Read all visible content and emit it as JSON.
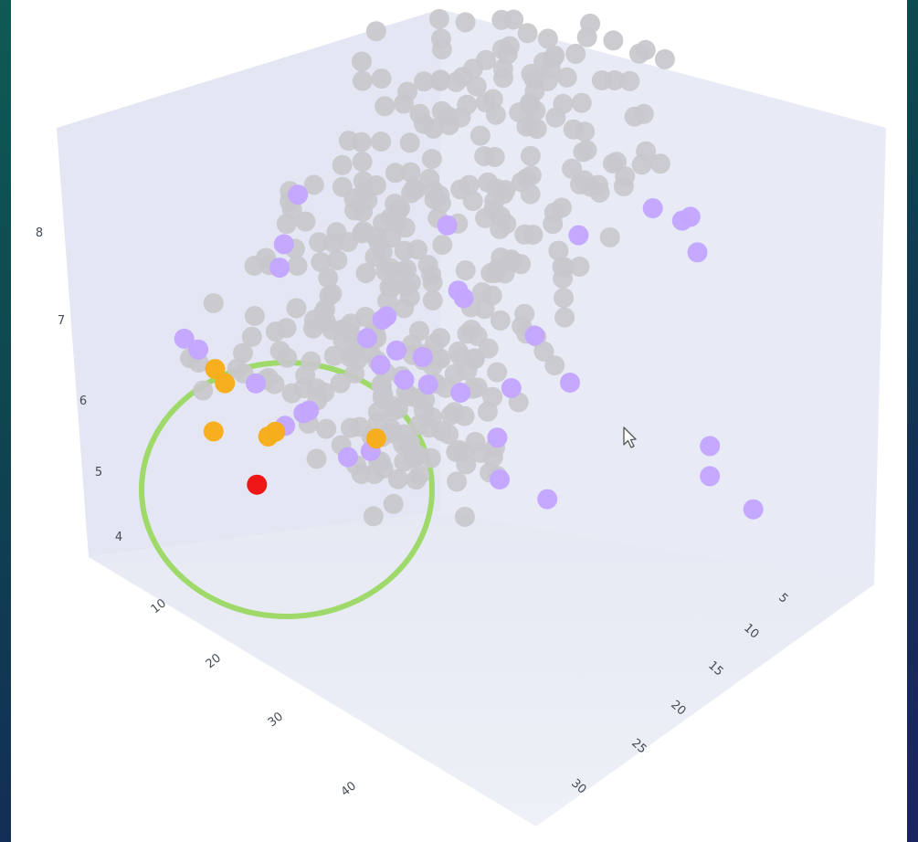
{
  "chart_data": {
    "type": "scatter",
    "dimensions": "3d",
    "axes": {
      "x": {
        "ticks": [
          "10",
          "20",
          "30",
          "40"
        ]
      },
      "y": {
        "ticks": [
          "5",
          "10",
          "15",
          "20",
          "25",
          "30"
        ]
      },
      "z": {
        "ticks": [
          "4",
          "5",
          "6",
          "7",
          "8"
        ]
      }
    },
    "grid": false,
    "legend": "none",
    "colors": {
      "gray": "#c8c8cc",
      "purple": "#c4a6ff",
      "orange": "#f7ad1c",
      "red": "#ee1111",
      "highlight_circle": "#9fd96a",
      "scene_bg": "#e4e7f3"
    },
    "series": [
      {
        "color": "purple",
        "points": [
          {
            "x": 42,
            "y": 6,
            "z": 8.9
          },
          {
            "x": 18,
            "y": 8,
            "z": 7.8
          },
          {
            "x": 32,
            "y": 7,
            "z": 7.4
          },
          {
            "x": 32,
            "y": 5,
            "z": 7.3
          },
          {
            "x": 30,
            "y": 8,
            "z": 7.2
          },
          {
            "x": 32,
            "y": 8,
            "z": 7.0
          },
          {
            "x": 38,
            "y": 10,
            "z": 7.8
          },
          {
            "x": 36,
            "y": 12,
            "z": 7.5
          },
          {
            "x": 44,
            "y": 18,
            "z": 8.2
          },
          {
            "x": 49,
            "y": 22,
            "z": 8.5
          },
          {
            "x": 49,
            "y": 25,
            "z": 8.2
          },
          {
            "x": 46,
            "y": 28,
            "z": 7.9
          },
          {
            "x": 47,
            "y": 28,
            "z": 7.6
          },
          {
            "x": 40,
            "y": 14,
            "z": 6.7
          },
          {
            "x": 40,
            "y": 20,
            "z": 6.4
          },
          {
            "x": 38,
            "y": 14,
            "z": 6.1
          },
          {
            "x": 16,
            "y": 8,
            "z": 7.2
          },
          {
            "x": 14,
            "y": 9,
            "z": 6.8
          },
          {
            "x": 26,
            "y": 15,
            "z": 6.2
          },
          {
            "x": 30,
            "y": 16,
            "z": 6.0
          },
          {
            "x": 6,
            "y": 5,
            "z": 5.9
          },
          {
            "x": 8,
            "y": 5,
            "z": 5.9
          },
          {
            "x": 12,
            "y": 8,
            "z": 5.6
          },
          {
            "x": 16,
            "y": 10,
            "z": 5.4
          },
          {
            "x": 14,
            "y": 12,
            "z": 5.2
          },
          {
            "x": 12,
            "y": 11,
            "z": 5.0
          },
          {
            "x": 20,
            "y": 14,
            "z": 5.0
          },
          {
            "x": 30,
            "y": 20,
            "z": 4.9
          },
          {
            "x": 34,
            "y": 22,
            "z": 4.8
          },
          {
            "x": 14,
            "y": 16,
            "z": 4.5
          },
          {
            "x": 46,
            "y": 30,
            "z": 5.5
          },
          {
            "x": 46,
            "y": 30,
            "z": 5.2
          },
          {
            "x": 48,
            "y": 33,
            "z": 4.8
          },
          {
            "x": 20,
            "y": 15,
            "z": 5.8
          },
          {
            "x": 22,
            "y": 16,
            "z": 5.7
          },
          {
            "x": 24,
            "y": 17,
            "z": 5.7
          },
          {
            "x": 35,
            "y": 20,
            "z": 6.6
          }
        ]
      },
      {
        "color": "orange",
        "points": [
          {
            "x": 9,
            "y": 6,
            "z": 5.7
          },
          {
            "x": 9,
            "y": 7,
            "z": 5.5
          },
          {
            "x": 12,
            "y": 10,
            "z": 5.0
          },
          {
            "x": 11,
            "y": 10,
            "z": 4.9
          },
          {
            "x": 18,
            "y": 16,
            "z": 4.9
          },
          {
            "x": 6,
            "y": 8,
            "z": 4.8
          }
        ]
      },
      {
        "color": "red",
        "points": [
          {
            "x": 8,
            "y": 11,
            "z": 4.2
          }
        ]
      },
      {
        "color": "gray",
        "points": []
      }
    ]
  }
}
